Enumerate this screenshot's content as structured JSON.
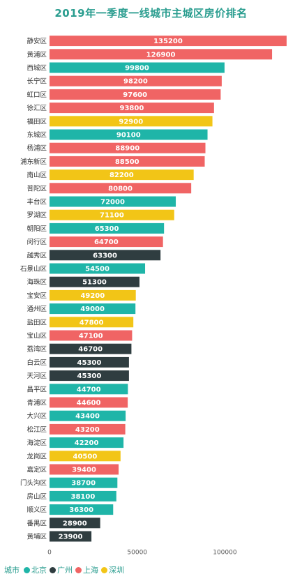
{
  "chart_data": {
    "type": "bar",
    "orientation": "horizontal",
    "title": "2019年一季度一线城市主城区房价排名",
    "xlim": [
      0,
      140000
    ],
    "x_ticks": [
      0,
      50000,
      100000
    ],
    "grid": false,
    "legend_placement": "bottom-left",
    "legend_title": "城市",
    "series": [
      {
        "name": "北京",
        "color": "#1fb5a8"
      },
      {
        "name": "广州",
        "color": "#2f3d40"
      },
      {
        "name": "上海",
        "color": "#f06464"
      },
      {
        "name": "深圳",
        "color": "#f2c517"
      }
    ],
    "bars": [
      {
        "category": "静安区",
        "value": 135200,
        "city": "上海"
      },
      {
        "category": "黄浦区",
        "value": 126900,
        "city": "上海"
      },
      {
        "category": "西城区",
        "value": 99800,
        "city": "北京"
      },
      {
        "category": "长宁区",
        "value": 98200,
        "city": "上海"
      },
      {
        "category": "虹口区",
        "value": 97600,
        "city": "上海"
      },
      {
        "category": "徐汇区",
        "value": 93800,
        "city": "上海"
      },
      {
        "category": "福田区",
        "value": 92900,
        "city": "深圳"
      },
      {
        "category": "东城区",
        "value": 90100,
        "city": "北京"
      },
      {
        "category": "杨浦区",
        "value": 88900,
        "city": "上海"
      },
      {
        "category": "浦东新区",
        "value": 88500,
        "city": "上海"
      },
      {
        "category": "南山区",
        "value": 82200,
        "city": "深圳"
      },
      {
        "category": "普陀区",
        "value": 80800,
        "city": "上海"
      },
      {
        "category": "丰台区",
        "value": 72000,
        "city": "北京"
      },
      {
        "category": "罗湖区",
        "value": 71100,
        "city": "深圳"
      },
      {
        "category": "朝阳区",
        "value": 65300,
        "city": "北京"
      },
      {
        "category": "闵行区",
        "value": 64700,
        "city": "上海"
      },
      {
        "category": "越秀区",
        "value": 63300,
        "city": "广州"
      },
      {
        "category": "石景山区",
        "value": 54500,
        "city": "北京"
      },
      {
        "category": "海珠区",
        "value": 51300,
        "city": "广州"
      },
      {
        "category": "宝安区",
        "value": 49200,
        "city": "深圳"
      },
      {
        "category": "通州区",
        "value": 49000,
        "city": "北京"
      },
      {
        "category": "盐田区",
        "value": 47800,
        "city": "深圳"
      },
      {
        "category": "宝山区",
        "value": 47100,
        "city": "上海"
      },
      {
        "category": "荔湾区",
        "value": 46700,
        "city": "广州"
      },
      {
        "category": "白云区",
        "value": 45300,
        "city": "广州"
      },
      {
        "category": "天河区",
        "value": 45300,
        "city": "广州"
      },
      {
        "category": "昌平区",
        "value": 44700,
        "city": "北京"
      },
      {
        "category": "青浦区",
        "value": 44600,
        "city": "上海"
      },
      {
        "category": "大兴区",
        "value": 43400,
        "city": "北京"
      },
      {
        "category": "松江区",
        "value": 43200,
        "city": "上海"
      },
      {
        "category": "海淀区",
        "value": 42200,
        "city": "北京"
      },
      {
        "category": "龙岗区",
        "value": 40500,
        "city": "深圳"
      },
      {
        "category": "嘉定区",
        "value": 39400,
        "city": "上海"
      },
      {
        "category": "门头沟区",
        "value": 38700,
        "city": "北京"
      },
      {
        "category": "房山区",
        "value": 38100,
        "city": "北京"
      },
      {
        "category": "顺义区",
        "value": 36300,
        "city": "北京"
      },
      {
        "category": "番禺区",
        "value": 28900,
        "city": "广州"
      },
      {
        "category": "黄埔区",
        "value": 23900,
        "city": "广州"
      }
    ]
  }
}
